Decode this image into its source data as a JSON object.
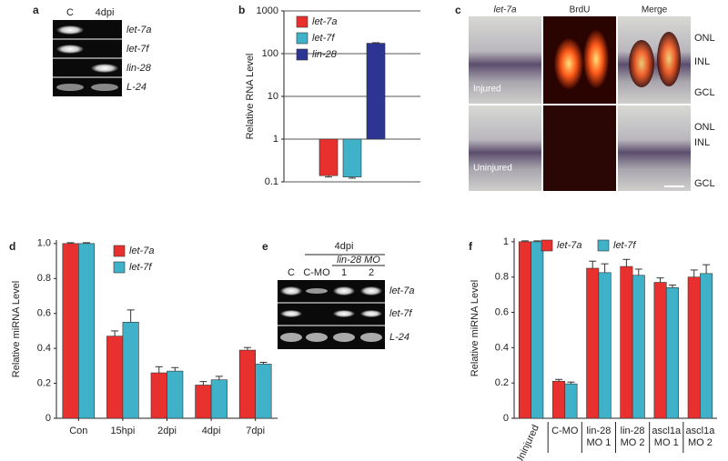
{
  "panel_labels": [
    "a",
    "b",
    "c",
    "d",
    "e",
    "f"
  ],
  "gel_a": {
    "lanes": [
      "C",
      "4dpi"
    ],
    "bands": [
      "let-7a",
      "let-7f",
      "lin-28",
      "L-24"
    ]
  },
  "image_c": {
    "columns": [
      "let-7a",
      "BrdU",
      "Merge"
    ],
    "rows": [
      "Injured",
      "Uninjured"
    ],
    "layers": [
      "ONL",
      "INL",
      "GCL"
    ]
  },
  "gel_e": {
    "condition": "4dpi",
    "group": "lin-28 MO",
    "lanes": [
      "C",
      "C-MO",
      "1",
      "2"
    ],
    "bands": [
      "let-7a",
      "let-7f",
      "L-24"
    ]
  },
  "chart_data": [
    {
      "type": "bar",
      "ylabel": "Relative RNA Level",
      "log": true,
      "grid": true,
      "legend": "top-left",
      "categories": [
        null
      ],
      "series": [
        {
          "name": "let-7a",
          "color": "#e8312e",
          "values": [
            0.14
          ],
          "errors": [
            0.01
          ]
        },
        {
          "name": "let-7f",
          "color": "#3fb1c9",
          "values": [
            0.13
          ],
          "errors": [
            0.008
          ]
        },
        {
          "name": "lin-28",
          "color": "#2d3592",
          "values": [
            175
          ],
          "errors": [
            5
          ]
        }
      ],
      "ylim": [
        0.1,
        1000
      ],
      "yticks": [
        {
          "value": 0.1,
          "label": "0.1"
        },
        1,
        10,
        100,
        1000
      ]
    },
    {
      "type": "bar",
      "ylabel": "Relative miRNA Level",
      "log": false,
      "grid": false,
      "legend": "top-right",
      "categories": [
        "Con",
        "15hpi",
        "2dpi",
        "4dpi",
        "7dpi"
      ],
      "series": [
        {
          "name": "let-7a",
          "color": "#e8312e",
          "values": [
            1.0,
            0.47,
            0.26,
            0.19,
            0.39
          ],
          "errors": [
            0.005,
            0.03,
            0.035,
            0.02,
            0.015
          ]
        },
        {
          "name": "let-7f",
          "color": "#3fb1c9",
          "values": [
            1.0,
            0.55,
            0.27,
            0.22,
            0.31
          ],
          "errors": [
            0.005,
            0.07,
            0.02,
            0.02,
            0.01
          ]
        }
      ],
      "ylim": [
        0,
        1.02
      ],
      "yticks": [
        0,
        0.2,
        0.4,
        0.6,
        0.8,
        {
          "value": 1,
          "label": "1.0"
        }
      ]
    },
    {
      "type": "bar",
      "ylabel": "Relative miRNA Level",
      "log": false,
      "grid": false,
      "legend": "top-right",
      "categories": [
        [
          "Uninjured"
        ],
        [
          "C-MO"
        ],
        [
          "lin-28",
          "MO 1"
        ],
        [
          "lin-28",
          "MO 2"
        ],
        [
          "ascl1a",
          "MO 1"
        ],
        [
          "ascl1a",
          "MO 2"
        ]
      ],
      "series": [
        {
          "name": "let-7a",
          "color": "#e8312e",
          "values": [
            1.0,
            0.21,
            0.85,
            0.86,
            0.77,
            0.8
          ],
          "errors": [
            0.005,
            0.01,
            0.04,
            0.04,
            0.025,
            0.04
          ]
        },
        {
          "name": "let-7f",
          "color": "#3fb1c9",
          "values": [
            1.0,
            0.195,
            0.825,
            0.81,
            0.74,
            0.82
          ],
          "errors": [
            0.005,
            0.01,
            0.05,
            0.035,
            0.015,
            0.05
          ]
        }
      ],
      "ylim": [
        0,
        1.02
      ],
      "yticks": [
        0,
        0.2,
        0.4,
        0.6,
        0.8,
        1
      ]
    }
  ]
}
